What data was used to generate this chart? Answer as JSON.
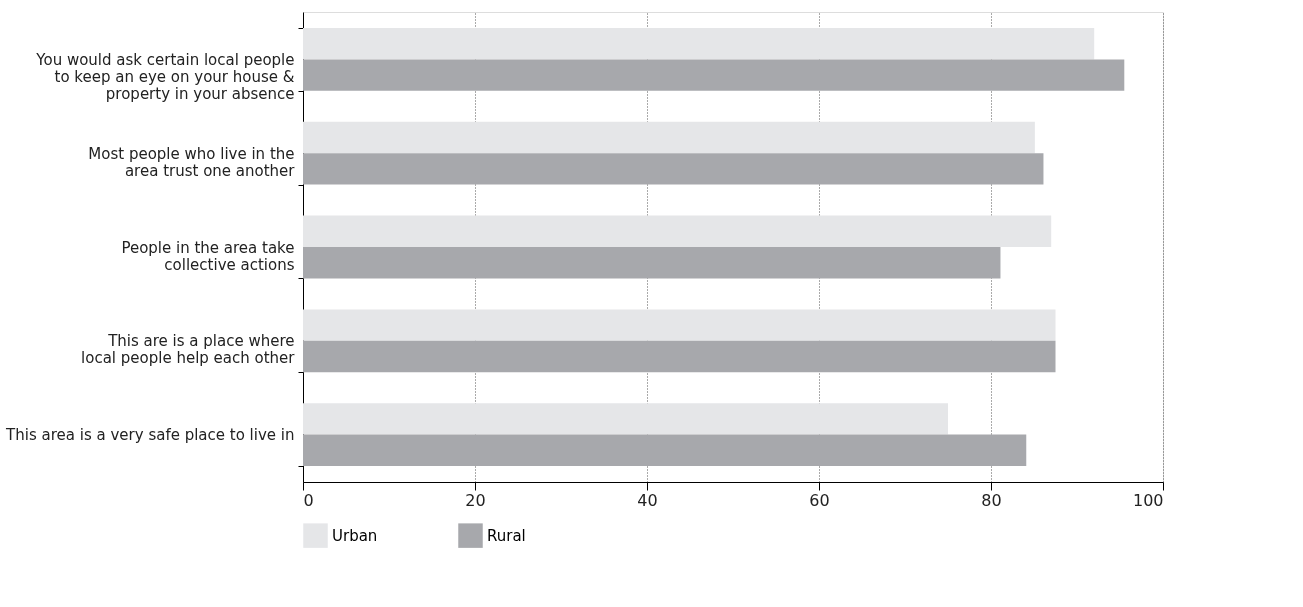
{
  "chart_data": {
    "type": "bar",
    "orientation": "horizontal",
    "categories": [
      "You would ask certain local people\nto keep an eye on your house &\nproperty in your absence",
      "Most people who live in the\narea trust one another",
      "People in the area take\ncollective actions",
      "This are is a place where\nlocal people help each other",
      "This area is a very safe place to live in"
    ],
    "series": [
      {
        "name": "Urban",
        "color": "#e5e6e8",
        "values": [
          92.0,
          85.1,
          87.0,
          87.5,
          75.0
        ]
      },
      {
        "name": "Rural",
        "color": "#a7a8ac",
        "values": [
          95.5,
          86.1,
          81.1,
          87.5,
          84.1
        ]
      }
    ],
    "xlim": [
      0,
      100
    ],
    "xticks": [
      0,
      20,
      40,
      60,
      80,
      100
    ],
    "grid": "x",
    "legend": "bottom left"
  }
}
